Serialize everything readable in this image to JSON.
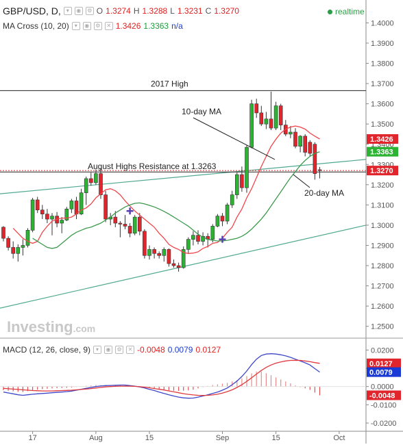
{
  "header": {
    "symbol": "GBP/USD, D,",
    "open_label": "O",
    "open": "1.3274",
    "high_label": "H",
    "high": "1.3288",
    "low_label": "L",
    "low": "1.3231",
    "close_label": "C",
    "close": "1.3270",
    "realtime": "realtime"
  },
  "ma_header": {
    "label": "MA Cross (10, 20)",
    "v1": "1.3426",
    "v2": "1.3363",
    "v3": "n/a"
  },
  "macd_header": {
    "label": "MACD (12, 26, close, 9)",
    "v1": "-0.0048",
    "v2": "0.0079",
    "v3": "0.0127"
  },
  "watermark": "Investing",
  "watermark_suffix": ".com",
  "colors": {
    "up": "#2db333",
    "down": "#e0262c",
    "ma10": "#f0464b",
    "ma20": "#3c9a4c",
    "macd": "#3d46c9",
    "signal": "#e0383c",
    "trend": "#4fa88f"
  },
  "chart_data": [
    {
      "type": "candlestick",
      "ylim": [
        1.2455,
        1.4113
      ],
      "y_ticks": [
        "1.4000",
        "1.3900",
        "1.3800",
        "1.3700",
        "1.3600",
        "1.3500",
        "1.3400",
        "1.3300",
        "1.3200",
        "1.3100",
        "1.3000",
        "1.2900",
        "1.2800",
        "1.2700",
        "1.2600",
        "1.2500"
      ],
      "x_ticks": [
        {
          "label": "17",
          "i": 6
        },
        {
          "label": "Aug",
          "i": 19
        },
        {
          "label": "15",
          "i": 30
        },
        {
          "label": "Sep",
          "i": 45
        },
        {
          "label": "15",
          "i": 56
        },
        {
          "label": "Oct",
          "i": 69
        }
      ],
      "candles": [
        [
          1.299,
          1.2995,
          1.292,
          1.2935
        ],
        [
          1.2935,
          1.2945,
          1.2875,
          1.289
        ],
        [
          1.289,
          1.292,
          1.2835,
          1.286
        ],
        [
          1.286,
          1.2905,
          1.282,
          1.289
        ],
        [
          1.289,
          1.293,
          1.285,
          1.29
        ],
        [
          1.29,
          1.2985,
          1.289,
          1.2975
        ],
        [
          1.2975,
          1.3135,
          1.2965,
          1.3125
        ],
        [
          1.3125,
          1.314,
          1.306,
          1.3075
        ],
        [
          1.3075,
          1.31,
          1.303,
          1.3055
        ],
        [
          1.3055,
          1.308,
          1.301,
          1.303
        ],
        [
          1.303,
          1.306,
          1.295,
          1.3045
        ],
        [
          1.3045,
          1.3065,
          1.299,
          1.301
        ],
        [
          1.301,
          1.304,
          1.296,
          1.3025
        ],
        [
          1.3025,
          1.309,
          1.302,
          1.308
        ],
        [
          1.308,
          1.313,
          1.306,
          1.312
        ],
        [
          1.312,
          1.314,
          1.303,
          1.3055
        ],
        [
          1.3055,
          1.318,
          1.305,
          1.316
        ],
        [
          1.316,
          1.324,
          1.31,
          1.323
        ],
        [
          1.323,
          1.326,
          1.3195,
          1.321
        ],
        [
          1.321,
          1.3275,
          1.32,
          1.3255
        ],
        [
          1.3255,
          1.328,
          1.313,
          1.315
        ],
        [
          1.315,
          1.317,
          1.3015,
          1.303
        ],
        [
          1.303,
          1.306,
          1.3,
          1.304
        ],
        [
          1.304,
          1.307,
          1.299,
          1.301
        ],
        [
          1.301,
          1.302,
          1.294,
          1.3005
        ],
        [
          1.3005,
          1.305,
          1.298,
          1.2995
        ],
        [
          1.2995,
          1.301,
          1.294,
          1.296
        ],
        [
          1.296,
          1.305,
          1.295,
          1.304
        ],
        [
          1.304,
          1.306,
          1.295,
          1.297
        ],
        [
          1.297,
          1.298,
          1.2835,
          1.285
        ],
        [
          1.285,
          1.29,
          1.283,
          1.288
        ],
        [
          1.288,
          1.289,
          1.2835,
          1.286
        ],
        [
          1.286,
          1.287,
          1.2835,
          1.285
        ],
        [
          1.285,
          1.289,
          1.282,
          1.288
        ],
        [
          1.288,
          1.2885,
          1.2795,
          1.281
        ],
        [
          1.281,
          1.283,
          1.279,
          1.28
        ],
        [
          1.28,
          1.2815,
          1.277,
          1.279
        ],
        [
          1.279,
          1.2895,
          1.2785,
          1.288
        ],
        [
          1.288,
          1.294,
          1.286,
          1.293
        ],
        [
          1.293,
          1.297,
          1.29,
          1.295
        ],
        [
          1.295,
          1.2975,
          1.2905,
          1.292
        ],
        [
          1.292,
          1.2965,
          1.29,
          1.2945
        ],
        [
          1.2945,
          1.296,
          1.289,
          1.293
        ],
        [
          1.293,
          1.3005,
          1.2915,
          1.2995
        ],
        [
          1.2995,
          1.3055,
          1.299,
          1.3045
        ],
        [
          1.3045,
          1.306,
          1.2995,
          1.302
        ],
        [
          1.302,
          1.311,
          1.3005,
          1.31
        ],
        [
          1.31,
          1.317,
          1.3085,
          1.315
        ],
        [
          1.315,
          1.326,
          1.313,
          1.325
        ],
        [
          1.325,
          1.329,
          1.3165,
          1.3185
        ],
        [
          1.3185,
          1.3395,
          1.316,
          1.3385
        ],
        [
          1.3385,
          1.362,
          1.338,
          1.36
        ],
        [
          1.36,
          1.3625,
          1.353,
          1.3555
        ],
        [
          1.3555,
          1.359,
          1.349,
          1.35
        ],
        [
          1.35,
          1.356,
          1.3475,
          1.3525
        ],
        [
          1.3525,
          1.366,
          1.347,
          1.348
        ],
        [
          1.348,
          1.361,
          1.347,
          1.359
        ],
        [
          1.359,
          1.36,
          1.347,
          1.3495
        ],
        [
          1.3495,
          1.352,
          1.344,
          1.345
        ],
        [
          1.345,
          1.349,
          1.343,
          1.346
        ],
        [
          1.346,
          1.348,
          1.338,
          1.339
        ],
        [
          1.339,
          1.3445,
          1.336,
          1.344
        ],
        [
          1.344,
          1.345,
          1.334,
          1.336
        ],
        [
          1.341,
          1.342,
          1.334,
          1.3355
        ],
        [
          1.34,
          1.341,
          1.3225,
          1.3255
        ],
        [
          1.3274,
          1.3288,
          1.3231,
          1.327
        ]
      ],
      "ma10": [
        1.2985,
        1.296,
        1.2935,
        1.292,
        1.291,
        1.292,
        1.2965,
        1.2995,
        1.302,
        1.303,
        1.3035,
        1.3035,
        1.304,
        1.3055,
        1.3075,
        1.3085,
        1.3105,
        1.3135,
        1.3155,
        1.3175,
        1.318,
        1.317,
        1.315,
        1.312,
        1.3095,
        1.307,
        1.305,
        1.303,
        1.301,
        1.299,
        1.296,
        1.2935,
        1.2905,
        1.289,
        1.288,
        1.2865,
        1.286,
        1.2862,
        1.2868,
        1.2885,
        1.2895,
        1.291,
        1.2915,
        1.2935,
        1.2965,
        1.299,
        1.304,
        1.308,
        1.3135,
        1.318,
        1.3235,
        1.329,
        1.334,
        1.339,
        1.3425,
        1.3455,
        1.3475,
        1.3485,
        1.349,
        1.3485,
        1.3475,
        1.3455,
        1.344,
        1.3426
      ],
      "ma20": [
        1.2935,
        1.292,
        1.2905,
        1.289,
        1.2885,
        1.289,
        1.291,
        1.293,
        1.295,
        1.2965,
        1.2975,
        1.2985,
        1.299,
        1.3,
        1.301,
        1.3025,
        1.304,
        1.306,
        1.3075,
        1.309,
        1.31,
        1.3108,
        1.311,
        1.3105,
        1.3098,
        1.309,
        1.308,
        1.3068,
        1.3055,
        1.304,
        1.3025,
        1.301,
        1.2995,
        1.2975,
        1.2955,
        1.294,
        1.293,
        1.2925,
        1.2922,
        1.2922,
        1.2925,
        1.293,
        1.2935,
        1.2945,
        1.296,
        1.298,
        1.3005,
        1.303,
        1.306,
        1.3095,
        1.313,
        1.3165,
        1.32,
        1.3235,
        1.3265,
        1.3295,
        1.332,
        1.334,
        1.3355,
        1.3363
      ],
      "lines": {
        "high_2017": 1.3665,
        "resistance": 1.3263,
        "close": 1.327,
        "upper_trend": [
          [
            0,
            1.3155
          ],
          [
            72,
            1.3325
          ]
        ],
        "lower_trend": [
          [
            0,
            1.259
          ],
          [
            72,
            1.3
          ]
        ]
      },
      "annotations": [
        {
          "text": "2017 High"
        },
        {
          "text": "August Highs  Resistance at 1.3263"
        },
        {
          "text": "10-day MA"
        },
        {
          "text": "20-day MA"
        }
      ],
      "markers": [
        [
          26,
          1.307
        ],
        [
          45,
          1.293
        ]
      ],
      "price_tags": [
        "1.3426",
        "1.3363",
        "1.3270"
      ]
    },
    {
      "type": "line",
      "ylim": [
        -0.0245,
        0.025
      ],
      "y_ticks": [
        "0.0200",
        "0.0100",
        "0.0000",
        "-0.0100",
        "-0.0200"
      ],
      "series": [
        {
          "values": [
            -0.003,
            -0.0035,
            -0.004,
            -0.0045,
            -0.0048,
            -0.0045,
            -0.0042,
            -0.004,
            -0.0038,
            -0.0036,
            -0.0034,
            -0.0032,
            -0.003,
            -0.0028,
            -0.0025,
            -0.002,
            -0.0015,
            -0.001,
            -0.0005,
            0.0,
            0.0003,
            0.0005,
            0.0006,
            0.0007,
            0.0008,
            0.0008,
            0.0005,
            0.0002,
            -0.0002,
            -0.0008,
            -0.0015,
            -0.0022,
            -0.003,
            -0.0038,
            -0.0045,
            -0.0052,
            -0.0058,
            -0.0062,
            -0.0064,
            -0.0063,
            -0.0058,
            -0.0052,
            -0.0045,
            -0.0038,
            -0.003,
            -0.002,
            -0.0008,
            0.001,
            0.003,
            0.0055,
            0.0085,
            0.012,
            0.015,
            0.017,
            0.0178,
            0.018,
            0.0178,
            0.0174,
            0.0168,
            0.016,
            0.015,
            0.014,
            0.013,
            0.0118,
            0.0098,
            0.0079
          ]
        },
        {
          "values": [
            -0.001,
            -0.0012,
            -0.0014,
            -0.0016,
            -0.0018,
            -0.002,
            -0.0022,
            -0.0023,
            -0.0024,
            -0.0024,
            -0.0024,
            -0.0023,
            -0.0022,
            -0.0021,
            -0.002,
            -0.0018,
            -0.0016,
            -0.0014,
            -0.0011,
            -0.0008,
            -0.0005,
            -0.0002,
            0.0,
            0.0001,
            0.0002,
            0.0002,
            0.0002,
            0.0001,
            -0.0001,
            -0.0004,
            -0.0007,
            -0.0011,
            -0.0015,
            -0.0019,
            -0.0024,
            -0.0029,
            -0.0034,
            -0.0039,
            -0.0043,
            -0.0046,
            -0.0048,
            -0.0049,
            -0.0048,
            -0.0046,
            -0.0042,
            -0.0036,
            -0.0028,
            -0.0018,
            -0.0005,
            0.001,
            0.0028,
            0.0048,
            0.0068,
            0.0088,
            0.0105,
            0.0118,
            0.0128,
            0.0135,
            0.014,
            0.0143,
            0.0144,
            0.0143,
            0.014,
            0.0136,
            0.0131,
            0.0127
          ]
        },
        {
          "values": [
            -0.002,
            -0.0023,
            -0.0026,
            -0.0029,
            -0.003,
            -0.0025,
            -0.002,
            -0.0017,
            -0.0014,
            -0.0012,
            -0.001,
            -0.0009,
            -0.0008,
            -0.0007,
            -0.0005,
            -0.0002,
            0.0001,
            0.0004,
            0.0006,
            0.0008,
            0.0008,
            0.0007,
            0.0006,
            0.0006,
            0.0006,
            0.0006,
            0.0003,
            0.0001,
            -0.0001,
            -0.0004,
            -0.0008,
            -0.0011,
            -0.0015,
            -0.0019,
            -0.0021,
            -0.0023,
            -0.0024,
            -0.0023,
            -0.0021,
            -0.0017,
            -0.001,
            -0.0003,
            0.0003,
            0.0008,
            0.0012,
            0.0016,
            0.002,
            0.0028,
            0.0035,
            0.0045,
            0.0057,
            0.0072,
            0.0082,
            0.0082,
            0.0073,
            0.0062,
            0.005,
            0.0039,
            0.0028,
            0.0017,
            0.0006,
            -0.0003,
            -0.001,
            -0.0018,
            -0.0033,
            -0.0048
          ]
        }
      ],
      "price_tags": [
        "0.0127",
        "0.0079",
        "-0.0048"
      ]
    }
  ]
}
